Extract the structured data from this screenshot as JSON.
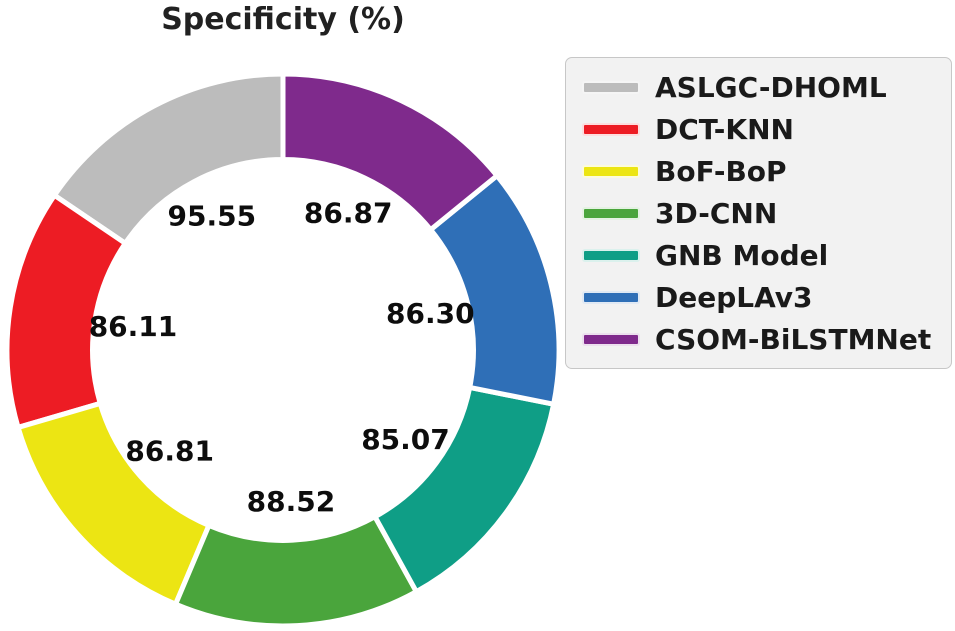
{
  "title": "Specificity (%)",
  "chart_data": {
    "type": "pie",
    "subtype": "donut",
    "title": "Specificity (%)",
    "categories": [
      "ASLGC-DHOML",
      "DCT-KNN",
      "BoF-BoP",
      "3D-CNN",
      "GNB Model",
      "DeepLAv3",
      "CSOM-BiLSTMNet"
    ],
    "values": [
      95.55,
      86.11,
      86.81,
      88.52,
      85.07,
      86.3,
      86.87
    ],
    "labels": [
      "95.55",
      "86.11",
      "86.81",
      "88.52",
      "85.07",
      "86.30",
      "86.87"
    ],
    "colors": [
      "#bcbcbc",
      "#ed1c24",
      "#ece513",
      "#4aa53c",
      "#0f9e86",
      "#2f6fb7",
      "#7f2a8c"
    ],
    "start_angle": 90,
    "direction": "counterclockwise",
    "donut_hole_ratio": 0.69,
    "label_radius_ratio": 0.55,
    "legend_position": "right",
    "slice_edge_color": "#ffffff"
  }
}
